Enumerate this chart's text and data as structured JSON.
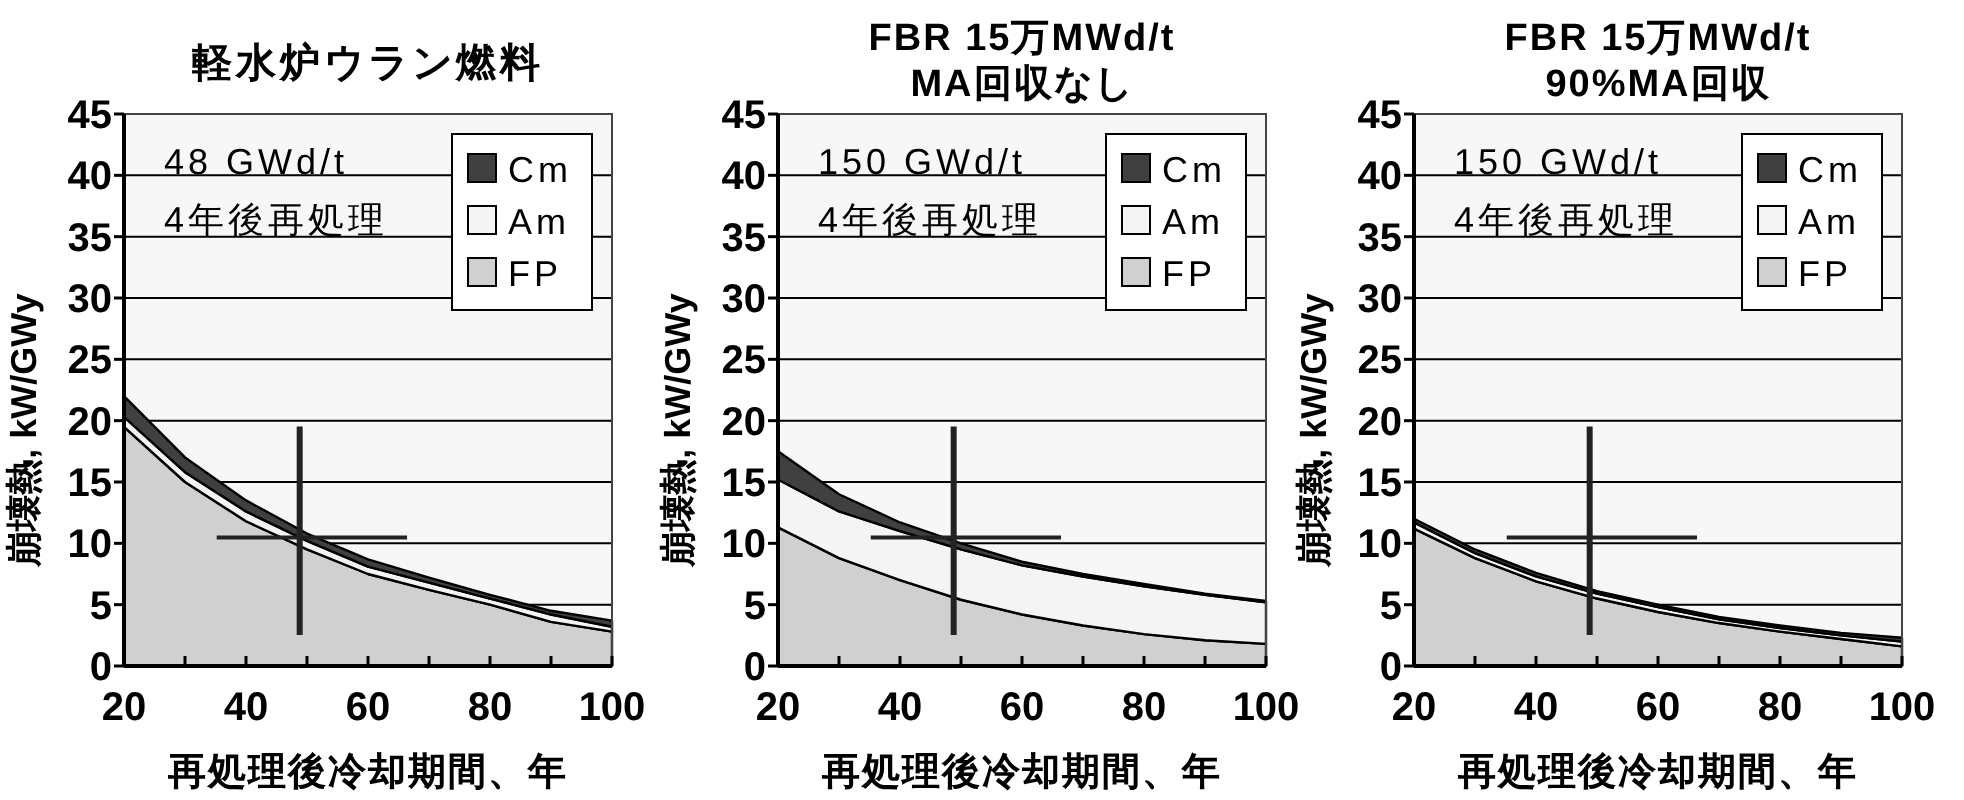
{
  "chart_data": [
    {
      "type": "area",
      "stacked": true,
      "title": "軽水炉ウラン燃料",
      "xlabel": "再処理後冷却期間、年",
      "ylabel": "崩壊熱, kW/GWy",
      "annotations": [
        "48 GWd/t",
        "4年後再処理"
      ],
      "x": [
        20,
        30,
        40,
        50,
        60,
        70,
        80,
        90,
        100
      ],
      "xlim": [
        20,
        100
      ],
      "ylim": [
        0,
        45
      ],
      "xticks": [
        20,
        {
          "value": 30,
          "label": null
        },
        40,
        {
          "value": 50,
          "label": null
        },
        60,
        {
          "value": 70,
          "label": null
        },
        80,
        {
          "value": 90,
          "label": null
        },
        100
      ],
      "yticks": [
        0,
        5,
        10,
        15,
        20,
        25,
        30,
        35,
        40,
        45
      ],
      "grid": "y",
      "legend": "top right",
      "series": [
        {
          "name": "FP",
          "color": "#d0d0d1",
          "values": [
            19.5,
            15,
            11.8,
            9.5,
            7.5,
            6.2,
            5,
            3.6,
            2.8
          ]
        },
        {
          "name": "Am",
          "color": "#f4f4f4",
          "values": [
            0.8,
            0.8,
            0.8,
            0.7,
            0.6,
            0.6,
            0.5,
            0.6,
            0.4
          ]
        },
        {
          "name": "Cm",
          "color": "#404040",
          "values": [
            1.7,
            1.2,
            0.9,
            0.6,
            0.6,
            0.4,
            0.3,
            0.3,
            0.5
          ]
        }
      ]
    },
    {
      "type": "area",
      "stacked": true,
      "title": "FBR 15万MWd/t",
      "subtitle": "MA回収なし",
      "xlabel": "再処理後冷却期間、年",
      "ylabel": "崩壊熱, kW/GWy",
      "annotations": [
        "150 GWd/t",
        "4年後再処理"
      ],
      "x": [
        20,
        30,
        40,
        50,
        60,
        70,
        80,
        90,
        100
      ],
      "xlim": [
        20,
        100
      ],
      "ylim": [
        0,
        45
      ],
      "xticks": [
        20,
        {
          "value": 30,
          "label": null
        },
        40,
        {
          "value": 50,
          "label": null
        },
        60,
        {
          "value": 70,
          "label": null
        },
        80,
        {
          "value": 90,
          "label": null
        },
        100
      ],
      "yticks": [
        0,
        5,
        10,
        15,
        20,
        25,
        30,
        35,
        40,
        45
      ],
      "grid": "y",
      "legend": "top right",
      "series": [
        {
          "name": "FP",
          "color": "#d0d0d1",
          "values": [
            11.3,
            8.8,
            7,
            5.4,
            4.2,
            3.3,
            2.6,
            2.1,
            1.8
          ]
        },
        {
          "name": "Am",
          "color": "#f4f4f4",
          "values": [
            3.9,
            3.8,
            4,
            4.1,
            4,
            4,
            3.9,
            3.7,
            3.4
          ]
        },
        {
          "name": "Cm",
          "color": "#404040",
          "values": [
            2.3,
            1.4,
            0.7,
            0.5,
            0.3,
            0.2,
            0.2,
            0.1,
            0.1
          ]
        }
      ]
    },
    {
      "type": "area",
      "stacked": true,
      "title": "FBR 15万MWd/t",
      "subtitle": "90%MA回収",
      "xlabel": "再処理後冷却期間、年",
      "ylabel": "崩壊熱, kW/GWy",
      "annotations": [
        "150 GWd/t",
        "4年後再処理"
      ],
      "x": [
        20,
        30,
        40,
        50,
        60,
        70,
        80,
        90,
        100
      ],
      "xlim": [
        20,
        100
      ],
      "ylim": [
        0,
        45
      ],
      "xticks": [
        20,
        {
          "value": 30,
          "label": null
        },
        40,
        {
          "value": 50,
          "label": null
        },
        60,
        {
          "value": 70,
          "label": null
        },
        80,
        {
          "value": 90,
          "label": null
        },
        100
      ],
      "yticks": [
        0,
        5,
        10,
        15,
        20,
        25,
        30,
        35,
        40,
        45
      ],
      "grid": "y",
      "legend": "top right",
      "series": [
        {
          "name": "FP",
          "color": "#d0d0d1",
          "values": [
            11.2,
            8.8,
            6.9,
            5.5,
            4.4,
            3.5,
            2.8,
            2.2,
            1.6
          ]
        },
        {
          "name": "Am",
          "color": "#f4f4f4",
          "values": [
            0.5,
            0.4,
            0.4,
            0.4,
            0.4,
            0.3,
            0.3,
            0.3,
            0.4
          ]
        },
        {
          "name": "Cm",
          "color": "#404040",
          "values": [
            0.3,
            0.3,
            0.3,
            0.2,
            0.2,
            0.2,
            0.2,
            0.2,
            0.3
          ]
        }
      ]
    }
  ]
}
